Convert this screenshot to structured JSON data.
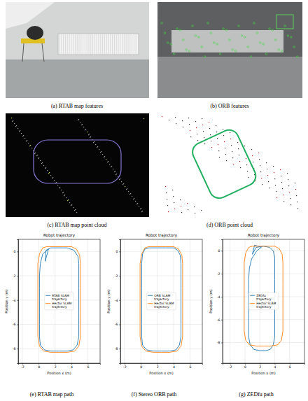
{
  "figure": {
    "captions": [
      "(a) RTAB map features",
      "(b) ORB features",
      "(c) RTAB map point cloud",
      "(d) ORB point cloud",
      "(e) RTAB map path",
      "(f) Stereo ORB path",
      "(g) ZEDfu path"
    ]
  },
  "chart_data": [
    {
      "type": "line",
      "title": "Robot trajectory",
      "x_label": "Position x (m)",
      "y_label": "Position y (m)",
      "xlim": [
        -2.5,
        7.5
      ],
      "ylim": [
        -9.2,
        1
      ],
      "xticks": [
        -2,
        0,
        2,
        4,
        6
      ],
      "yticks": [
        -8,
        -6,
        -4,
        -2,
        0
      ],
      "grid": true,
      "legend": "center",
      "series": [
        {
          "name": "RTAB SLAM trajectory",
          "color": "#1f77b4",
          "x": [
            0.8,
            0.9,
            1.5,
            2.5,
            3.5,
            4.3,
            4.8,
            4.9,
            4.9,
            4.9,
            4.9,
            4.9,
            4.9,
            4.9,
            4.7,
            4.2,
            3.5,
            2.5,
            1.5,
            0.7,
            0.2,
            0.1,
            0.1,
            0.1,
            0.1,
            0.1,
            0.1,
            0.2,
            0.5,
            1.2,
            1.0,
            0.8
          ],
          "values": [
            -0.8,
            0.1,
            0.3,
            0.3,
            0.3,
            0.1,
            -0.4,
            -1,
            -2,
            -3,
            -4,
            -5,
            -6,
            -7,
            -7.7,
            -8.1,
            -8.2,
            -8.2,
            -8.2,
            -8.1,
            -7.7,
            -7,
            -6,
            -5,
            -4,
            -3,
            -2,
            -1,
            -0.2,
            0.2,
            -0.3,
            -0.8
          ]
        },
        {
          "name": "Hector SLAM trajectory",
          "color": "#ff7f0e",
          "x": [
            0.5,
            1,
            2,
            3,
            4,
            4.6,
            5,
            5.1,
            5.1,
            5.1,
            5.1,
            5.1,
            5.1,
            5.1,
            4.9,
            4.4,
            3.5,
            2.5,
            1.5,
            0.6,
            0.1,
            -0.1,
            -0.1,
            -0.1,
            -0.1,
            -0.1,
            -0.1,
            -0.1,
            0.1,
            0.5
          ],
          "values": [
            0.3,
            0.4,
            0.4,
            0.4,
            0.4,
            0.2,
            -0.3,
            -1,
            -2,
            -3,
            -4,
            -5,
            -6,
            -7,
            -7.8,
            -8.2,
            -8.3,
            -8.3,
            -8.3,
            -8.2,
            -7.8,
            -7,
            -6,
            -5,
            -4,
            -3,
            -2,
            -1,
            -0.2,
            0.3
          ]
        }
      ]
    },
    {
      "type": "line",
      "title": "Robot trajectory",
      "x_label": "Position x (m)",
      "y_label": "Position y (m)",
      "xlim": [
        -2.5,
        7.5
      ],
      "ylim": [
        -9.2,
        1
      ],
      "xticks": [
        -2,
        0,
        2,
        4,
        6
      ],
      "yticks": [
        -8,
        -6,
        -4,
        -2,
        0
      ],
      "grid": true,
      "legend": "center",
      "series": [
        {
          "name": "ORB SLAM trajectory",
          "color": "#1f77b4",
          "x": [
            0.5,
            1,
            2,
            3,
            4,
            4.5,
            4.8,
            4.9,
            4.9,
            4.9,
            4.9,
            4.9,
            4.9,
            4.9,
            4.7,
            4.3,
            3.5,
            2.5,
            1.5,
            0.7,
            0.2,
            0.1,
            0.1,
            0.1,
            0.1,
            0.1,
            0.1,
            0.1,
            0.2,
            0.5
          ],
          "values": [
            0.2,
            0.3,
            0.3,
            0.3,
            0.3,
            0.1,
            -0.3,
            -1,
            -2,
            -3,
            -4,
            -5,
            -6,
            -7,
            -7.7,
            -8.1,
            -8.2,
            -8.2,
            -8.2,
            -8.1,
            -7.7,
            -7,
            -6,
            -5,
            -4,
            -3,
            -2,
            -1,
            -0.2,
            0.2
          ]
        },
        {
          "name": "Hector SLAM trajectory",
          "color": "#ff7f0e",
          "x": [
            0.5,
            1,
            2,
            3,
            4,
            4.6,
            5,
            5.1,
            5.1,
            5.1,
            5.1,
            5.1,
            5.1,
            5.1,
            4.9,
            4.4,
            3.5,
            2.5,
            1.5,
            0.6,
            0.1,
            -0.1,
            -0.1,
            -0.1,
            -0.1,
            -0.1,
            -0.1,
            -0.1,
            0.1,
            0.5
          ],
          "values": [
            0.3,
            0.4,
            0.4,
            0.4,
            0.4,
            0.2,
            -0.3,
            -1,
            -2,
            -3,
            -4,
            -5,
            -6,
            -7,
            -7.8,
            -8.2,
            -8.3,
            -8.3,
            -8.3,
            -8.2,
            -7.8,
            -7,
            -6,
            -5,
            -4,
            -3,
            -2,
            -1,
            -0.2,
            0.3
          ]
        }
      ]
    },
    {
      "type": "line",
      "title": "Robot trajectory",
      "x_label": "Position x (m)",
      "y_label": "Position y (m)",
      "xlim": [
        -3,
        8
      ],
      "ylim": [
        -9.8,
        1
      ],
      "xticks": [
        -2,
        0,
        2,
        4,
        6
      ],
      "yticks": [
        -8,
        -6,
        -4,
        -2,
        0
      ],
      "grid": true,
      "legend": "center",
      "series": [
        {
          "name": "ZEDfu trajectory",
          "color": "#1f77b4",
          "x": [
            1,
            1.5,
            2.5,
            3.3,
            3.8,
            4,
            4,
            4,
            4,
            4,
            4,
            4,
            4,
            3.8,
            3.4,
            2.8,
            2,
            1.2,
            0.7,
            0.5,
            0.5,
            0.5,
            0.5,
            0.5,
            0.5,
            0.6,
            0.9,
            1.6,
            2.2,
            1.3,
            1
          ],
          "values": [
            -0.3,
            0.3,
            0.4,
            0.3,
            0,
            -0.6,
            -1.5,
            -2.5,
            -3.5,
            -4.5,
            -5.5,
            -6.5,
            -7.5,
            -8.2,
            -8.6,
            -8.7,
            -8.7,
            -8.6,
            -8.2,
            -7.5,
            -6.5,
            -5.5,
            -4.5,
            -3.5,
            -2.5,
            -1.5,
            -0.7,
            0,
            0.3,
            0.5,
            -0.3
          ]
        },
        {
          "name": "Hector SLAM trajectory",
          "color": "#ff7f0e",
          "x": [
            0.5,
            1,
            2,
            3,
            4,
            4.6,
            5,
            5.1,
            5.1,
            5.1,
            5.1,
            5.1,
            5.1,
            5.1,
            4.9,
            4.4,
            3.5,
            2.5,
            1.5,
            0.6,
            0.1,
            -0.1,
            -0.1,
            -0.1,
            -0.1,
            -0.1,
            -0.1,
            -0.1,
            0.1,
            0.5
          ],
          "values": [
            0.3,
            0.4,
            0.4,
            0.4,
            0.4,
            0.2,
            -0.3,
            -1,
            -2,
            -3,
            -4,
            -5,
            -6,
            -7,
            -7.8,
            -8.2,
            -8.3,
            -8.3,
            -8.3,
            -8.2,
            -7.8,
            -7,
            -6,
            -5,
            -4,
            -3,
            -2,
            -1,
            -0.2,
            0.3
          ]
        }
      ]
    }
  ]
}
